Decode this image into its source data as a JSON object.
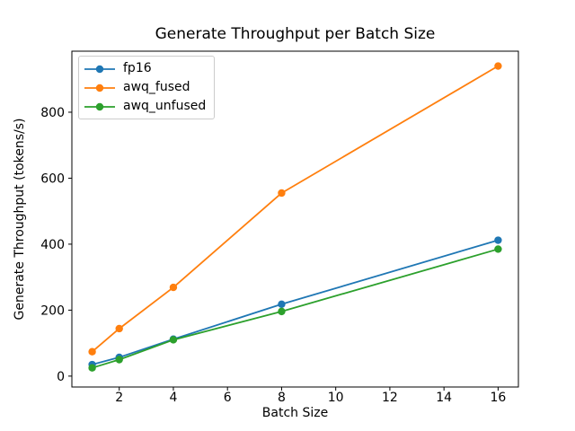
{
  "figure": {
    "background": "#ffffff",
    "text_color": "#000000",
    "spine_color": "#000000"
  },
  "chart_data": {
    "type": "line",
    "title": "Generate Throughput per Batch Size",
    "xlabel": "Batch Size",
    "ylabel": "Generate Throughput (tokens/s)",
    "x": [
      1,
      2,
      4,
      8,
      16
    ],
    "series": [
      {
        "name": "fp16",
        "color": "#1f77b4",
        "values": [
          35,
          57,
          112,
          218,
          412
        ]
      },
      {
        "name": "awq_fused",
        "color": "#ff7f0e",
        "values": [
          74,
          144,
          269,
          555,
          940
        ]
      },
      {
        "name": "awq_unfused",
        "color": "#2ca02c",
        "values": [
          25,
          50,
          110,
          196,
          385
        ]
      }
    ],
    "xticks": [
      2,
      4,
      6,
      8,
      10,
      12,
      14,
      16
    ],
    "yticks": [
      0,
      200,
      400,
      600,
      800
    ],
    "xlim": [
      0.25,
      16.75
    ],
    "ylim": [
      -33,
      985
    ],
    "grid": false,
    "legend_position": "upper left",
    "marker": "o",
    "line_width": 1.8,
    "marker_radius": 4.2
  }
}
